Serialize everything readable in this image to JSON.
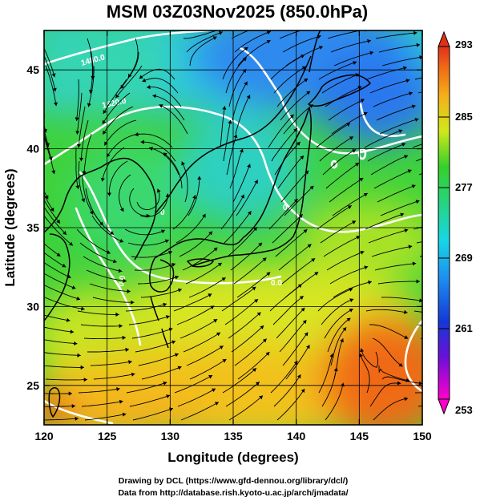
{
  "title": "MSM 03Z03Nov2025 (850.0hPa)",
  "xlabel": "Longitude (degrees)",
  "ylabel": "Latitude  (degrees)",
  "credits": {
    "line1": "Drawing by DCL (https://www.gfd-dennou.org/library/dcl/)",
    "line2": "Data from http://database.rish.kyoto-u.ac.jp/arch/jmadata/"
  },
  "map": {
    "lon_range": [
      120,
      150
    ],
    "lat_range": [
      22.5,
      47.5
    ],
    "x_ticks": [
      "120",
      "125",
      "130",
      "135",
      "140",
      "145",
      "150"
    ],
    "y_ticks": [
      "25",
      "30",
      "35",
      "40",
      "45"
    ],
    "grid": true
  },
  "colorbar": {
    "min": 253,
    "max": 293,
    "ticks": [
      "293",
      "285",
      "277",
      "269",
      "261",
      "253"
    ],
    "colors": [
      "#ff00cc",
      "#3b1fd6",
      "#1e6cf0",
      "#16d6e6",
      "#2bd66a",
      "#4fd228",
      "#dde81a",
      "#f5b01a",
      "#f06a15",
      "#e0301a"
    ]
  },
  "contour_labels": [
    "1480.0",
    "1520.0",
    "0",
    "0",
    "0.0",
    "0.0"
  ],
  "colors": {
    "frame": "#000000",
    "contour": "#ffffff",
    "streamline": "#000000"
  }
}
